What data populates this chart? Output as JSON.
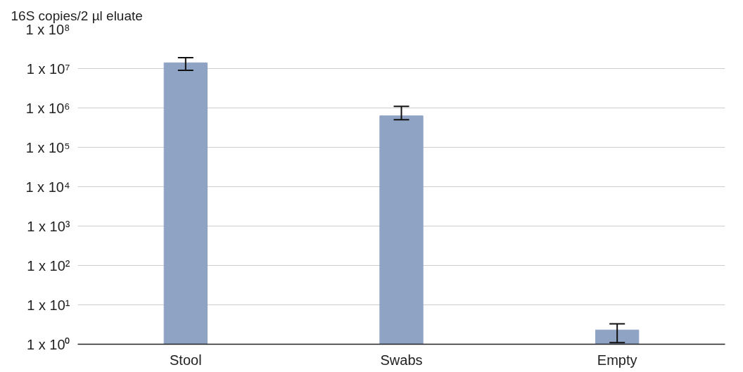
{
  "chart_data": {
    "type": "bar",
    "ylabel": "16S copies/2 µl eluate",
    "categories": [
      "Stool",
      "Swabs",
      "Empty"
    ],
    "values": [
      14000000,
      630000,
      2.3
    ],
    "errors": [
      [
        9000000,
        19000000
      ],
      [
        500000,
        1100000
      ],
      [
        1.1,
        3.3
      ]
    ],
    "color": "#8fa3c4",
    "log": "y",
    "ylim": [
      1,
      100000000
    ],
    "yticks": [
      {
        "value": 1,
        "label": "1 x 10⁰"
      },
      {
        "value": 10,
        "label": "1 x 10¹"
      },
      {
        "value": 100,
        "label": "1 x 10²"
      },
      {
        "value": 1000,
        "label": "1 x 10³"
      },
      {
        "value": 10000,
        "label": "1 x 10⁴"
      },
      {
        "value": 100000,
        "label": "1 x 10⁵"
      },
      {
        "value": 1000000,
        "label": "1 x 10⁶"
      },
      {
        "value": 10000000,
        "label": "1 x 10⁷"
      },
      {
        "value": 100000000,
        "label": "1 x 10⁸"
      }
    ],
    "grid": "y",
    "legend": false
  }
}
